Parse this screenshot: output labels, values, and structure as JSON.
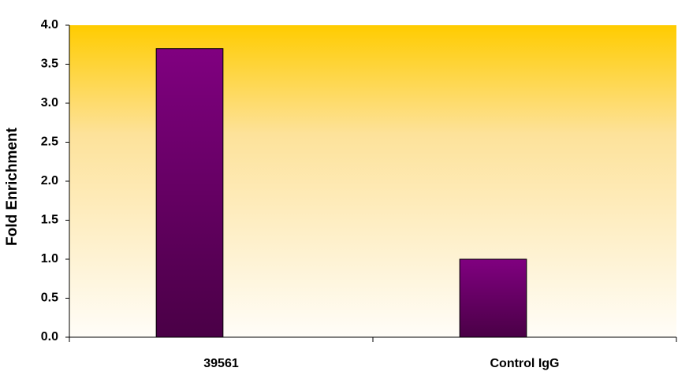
{
  "chart_data": {
    "type": "bar",
    "y_label": "Fold Enrichment",
    "categories": [
      "39561",
      "Control IgG"
    ],
    "values": [
      3.7,
      1.0
    ],
    "color": "#800080",
    "ylim": [
      0,
      4
    ],
    "yticks": [
      {
        "value": 0,
        "label": "0.0"
      },
      {
        "value": 0.5,
        "label": "0.5"
      },
      {
        "value": 1,
        "label": "1.0"
      },
      {
        "value": 1.5,
        "label": "1.5"
      },
      {
        "value": 2,
        "label": "2.0"
      },
      {
        "value": 2.5,
        "label": "2.5"
      },
      {
        "value": 3,
        "label": "3.0"
      },
      {
        "value": 3.5,
        "label": "3.5"
      },
      {
        "value": 4,
        "label": "4.0"
      }
    ]
  }
}
